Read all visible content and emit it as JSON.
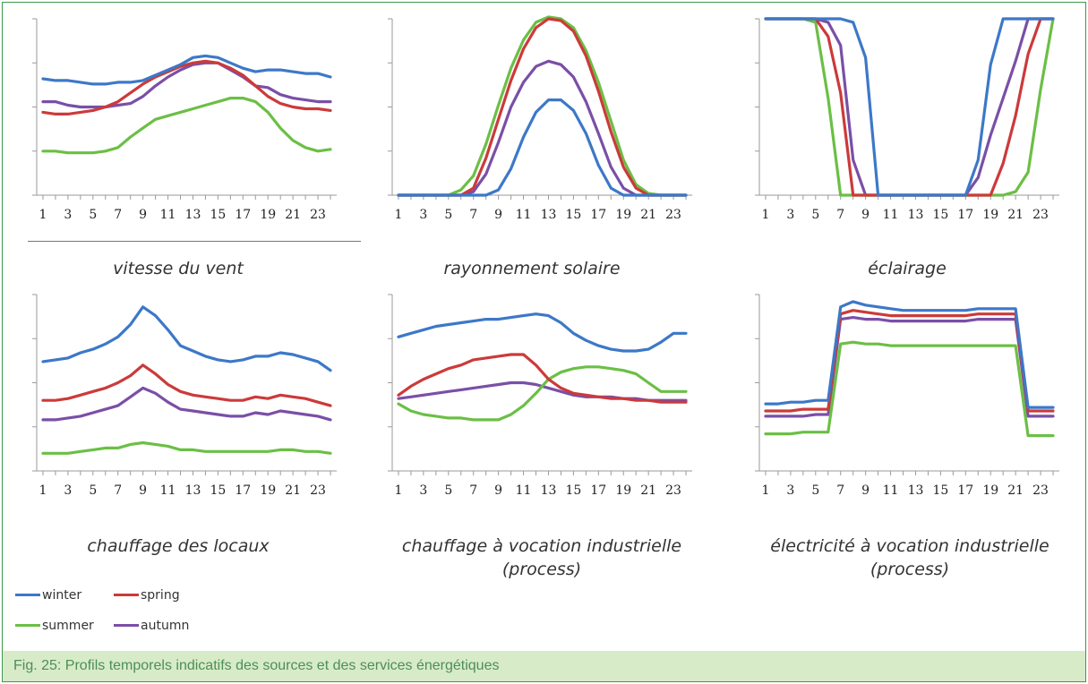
{
  "colors": {
    "winter": "#3c78c8",
    "spring": "#cc3a3a",
    "summer": "#6bbf45",
    "autumn": "#7a4fa6",
    "frame": "#3d9a4f",
    "caption_bg": "#d8ebc9",
    "caption_text": "#4d8f56"
  },
  "legend": [
    {
      "key": "winter",
      "label": "winter"
    },
    {
      "key": "spring",
      "label": "spring"
    },
    {
      "key": "summer",
      "label": "summer"
    },
    {
      "key": "autumn",
      "label": "autumn"
    }
  ],
  "caption": "Fig. 25: Profils temporels indicatifs des sources et des services énergétiques",
  "chart_data": [
    {
      "type": "line",
      "title": "vitesse du vent",
      "x": [
        1,
        2,
        3,
        4,
        5,
        6,
        7,
        8,
        9,
        10,
        11,
        12,
        13,
        14,
        15,
        16,
        17,
        18,
        19,
        20,
        21,
        22,
        23,
        24
      ],
      "x_tick_labels": [
        "1",
        "3",
        "5",
        "7",
        "9",
        "11",
        "13",
        "15",
        "17",
        "19",
        "21",
        "23"
      ],
      "ylim": [
        0,
        100
      ],
      "series": [
        {
          "key": "winter",
          "values": [
            66,
            65,
            65,
            64,
            63,
            63,
            64,
            64,
            65,
            68,
            71,
            74,
            78,
            79,
            78,
            75,
            72,
            70,
            71,
            71,
            70,
            69,
            69,
            67
          ]
        },
        {
          "key": "spring",
          "values": [
            47,
            46,
            46,
            47,
            48,
            50,
            53,
            58,
            63,
            67,
            70,
            73,
            75,
            76,
            75,
            72,
            68,
            62,
            56,
            52,
            50,
            49,
            49,
            48
          ]
        },
        {
          "key": "summer",
          "values": [
            25,
            25,
            24,
            24,
            24,
            25,
            27,
            33,
            38,
            43,
            45,
            47,
            49,
            51,
            53,
            55,
            55,
            53,
            47,
            38,
            31,
            27,
            25,
            26
          ]
        },
        {
          "key": "autumn",
          "values": [
            53,
            53,
            51,
            50,
            50,
            50,
            51,
            52,
            56,
            62,
            67,
            71,
            74,
            75,
            75,
            71,
            67,
            62,
            61,
            57,
            55,
            54,
            53,
            53
          ]
        }
      ]
    },
    {
      "type": "line",
      "title": "rayonnement solaire",
      "x": [
        1,
        2,
        3,
        4,
        5,
        6,
        7,
        8,
        9,
        10,
        11,
        12,
        13,
        14,
        15,
        16,
        17,
        18,
        19,
        20,
        21,
        22,
        23,
        24
      ],
      "x_tick_labels": [
        "1",
        "3",
        "5",
        "7",
        "9",
        "11",
        "13",
        "15",
        "17",
        "19",
        "21",
        "23"
      ],
      "ylim": [
        0,
        100
      ],
      "series": [
        {
          "key": "winter",
          "values": [
            0,
            0,
            0,
            0,
            0,
            0,
            0,
            0,
            3,
            15,
            33,
            47,
            54,
            54,
            48,
            35,
            17,
            4,
            0,
            0,
            0,
            0,
            0,
            0
          ]
        },
        {
          "key": "spring",
          "values": [
            0,
            0,
            0,
            0,
            0,
            0,
            4,
            21,
            43,
            65,
            83,
            95,
            100,
            99,
            93,
            79,
            59,
            36,
            16,
            4,
            0,
            0,
            0,
            0
          ]
        },
        {
          "key": "summer",
          "values": [
            0,
            0,
            0,
            0,
            0,
            3,
            11,
            29,
            51,
            72,
            88,
            98,
            101,
            100,
            95,
            82,
            64,
            42,
            20,
            6,
            1,
            0,
            0,
            0
          ]
        },
        {
          "key": "autumn",
          "values": [
            0,
            0,
            0,
            0,
            0,
            0,
            2,
            12,
            30,
            50,
            64,
            73,
            76,
            74,
            67,
            53,
            35,
            16,
            4,
            0,
            0,
            0,
            0,
            0
          ]
        }
      ]
    },
    {
      "type": "line",
      "title": "éclairage",
      "x": [
        1,
        2,
        3,
        4,
        5,
        6,
        7,
        8,
        9,
        10,
        11,
        12,
        13,
        14,
        15,
        16,
        17,
        18,
        19,
        20,
        21,
        22,
        23,
        24
      ],
      "x_tick_labels": [
        "1",
        "3",
        "5",
        "7",
        "9",
        "11",
        "13",
        "15",
        "17",
        "19",
        "21",
        "23"
      ],
      "ylim": [
        0,
        100
      ],
      "series": [
        {
          "key": "winter",
          "values": [
            100,
            100,
            100,
            100,
            100,
            100,
            100,
            98,
            78,
            0,
            0,
            0,
            0,
            0,
            0,
            0,
            0,
            20,
            74,
            100,
            100,
            100,
            100,
            100
          ]
        },
        {
          "key": "spring",
          "values": [
            100,
            100,
            100,
            100,
            100,
            90,
            58,
            0,
            0,
            0,
            0,
            0,
            0,
            0,
            0,
            0,
            0,
            0,
            0,
            18,
            45,
            80,
            100,
            100
          ]
        },
        {
          "key": "summer",
          "values": [
            100,
            100,
            100,
            100,
            98,
            55,
            0,
            0,
            0,
            0,
            0,
            0,
            0,
            0,
            0,
            0,
            0,
            0,
            0,
            0,
            2,
            13,
            60,
            100
          ]
        },
        {
          "key": "autumn",
          "values": [
            100,
            100,
            100,
            100,
            100,
            98,
            85,
            20,
            0,
            0,
            0,
            0,
            0,
            0,
            0,
            0,
            0,
            10,
            34,
            55,
            76,
            100,
            100,
            100
          ]
        }
      ]
    },
    {
      "type": "line",
      "title": "chauffage des locaux",
      "x": [
        1,
        2,
        3,
        4,
        5,
        6,
        7,
        8,
        9,
        10,
        11,
        12,
        13,
        14,
        15,
        16,
        17,
        18,
        19,
        20,
        21,
        22,
        23,
        24
      ],
      "x_tick_labels": [
        "1",
        "3",
        "5",
        "7",
        "9",
        "11",
        "13",
        "15",
        "17",
        "19",
        "21",
        "23"
      ],
      "ylim": [
        0,
        100
      ],
      "series": [
        {
          "key": "winter",
          "values": [
            62,
            63,
            64,
            67,
            69,
            72,
            76,
            83,
            93,
            88,
            80,
            71,
            68,
            65,
            63,
            62,
            63,
            65,
            65,
            67,
            66,
            64,
            62,
            57
          ]
        },
        {
          "key": "spring",
          "values": [
            40,
            40,
            41,
            43,
            45,
            47,
            50,
            54,
            60,
            55,
            49,
            45,
            43,
            42,
            41,
            40,
            40,
            42,
            41,
            43,
            42,
            41,
            39,
            37
          ]
        },
        {
          "key": "summer",
          "values": [
            10,
            10,
            10,
            11,
            12,
            13,
            13,
            15,
            16,
            15,
            14,
            12,
            12,
            11,
            11,
            11,
            11,
            11,
            11,
            12,
            12,
            11,
            11,
            10
          ]
        },
        {
          "key": "autumn",
          "values": [
            29,
            29,
            30,
            31,
            33,
            35,
            37,
            42,
            47,
            44,
            39,
            35,
            34,
            33,
            32,
            31,
            31,
            33,
            32,
            34,
            33,
            32,
            31,
            29
          ]
        }
      ]
    },
    {
      "type": "line",
      "title": "chauffage à vocation industrielle\n(process)",
      "x": [
        1,
        2,
        3,
        4,
        5,
        6,
        7,
        8,
        9,
        10,
        11,
        12,
        13,
        14,
        15,
        16,
        17,
        18,
        19,
        20,
        21,
        22,
        23,
        24
      ],
      "x_tick_labels": [
        "1",
        "3",
        "5",
        "7",
        "9",
        "11",
        "13",
        "15",
        "17",
        "19",
        "21",
        "23"
      ],
      "ylim": [
        0,
        100
      ],
      "series": [
        {
          "key": "winter",
          "values": [
            76,
            78,
            80,
            82,
            83,
            84,
            85,
            86,
            86,
            87,
            88,
            89,
            88,
            84,
            78,
            74,
            71,
            69,
            68,
            68,
            69,
            73,
            78,
            78
          ]
        },
        {
          "key": "spring",
          "values": [
            43,
            48,
            52,
            55,
            58,
            60,
            63,
            64,
            65,
            66,
            66,
            60,
            52,
            47,
            44,
            43,
            42,
            41,
            41,
            40,
            40,
            39,
            39,
            39
          ]
        },
        {
          "key": "summer",
          "values": [
            38,
            34,
            32,
            31,
            30,
            30,
            29,
            29,
            29,
            32,
            37,
            44,
            52,
            56,
            58,
            59,
            59,
            58,
            57,
            55,
            50,
            45,
            45,
            45
          ]
        },
        {
          "key": "autumn",
          "values": [
            41,
            42,
            43,
            44,
            45,
            46,
            47,
            48,
            49,
            50,
            50,
            49,
            47,
            45,
            43,
            42,
            42,
            42,
            41,
            41,
            40,
            40,
            40,
            40
          ]
        }
      ]
    },
    {
      "type": "line",
      "title": "électricité à vocation industrielle\n(process)",
      "x": [
        1,
        2,
        3,
        4,
        5,
        6,
        7,
        8,
        9,
        10,
        11,
        12,
        13,
        14,
        15,
        16,
        17,
        18,
        19,
        20,
        21,
        22,
        23,
        24
      ],
      "x_tick_labels": [
        "1",
        "3",
        "5",
        "7",
        "9",
        "11",
        "13",
        "15",
        "17",
        "19",
        "21",
        "23"
      ],
      "ylim": [
        0,
        100
      ],
      "series": [
        {
          "key": "winter",
          "values": [
            38,
            38,
            39,
            39,
            40,
            40,
            93,
            96,
            94,
            93,
            92,
            91,
            91,
            91,
            91,
            91,
            91,
            92,
            92,
            92,
            92,
            36,
            36,
            36
          ]
        },
        {
          "key": "spring",
          "values": [
            34,
            34,
            34,
            35,
            35,
            35,
            89,
            91,
            90,
            89,
            88,
            88,
            88,
            88,
            88,
            88,
            88,
            89,
            89,
            89,
            89,
            34,
            34,
            34
          ]
        },
        {
          "key": "summer",
          "values": [
            21,
            21,
            21,
            22,
            22,
            22,
            72,
            73,
            72,
            72,
            71,
            71,
            71,
            71,
            71,
            71,
            71,
            71,
            71,
            71,
            71,
            20,
            20,
            20
          ]
        },
        {
          "key": "autumn",
          "values": [
            31,
            31,
            31,
            31,
            32,
            32,
            86,
            87,
            86,
            86,
            85,
            85,
            85,
            85,
            85,
            85,
            85,
            86,
            86,
            86,
            86,
            31,
            31,
            31
          ]
        }
      ]
    }
  ]
}
